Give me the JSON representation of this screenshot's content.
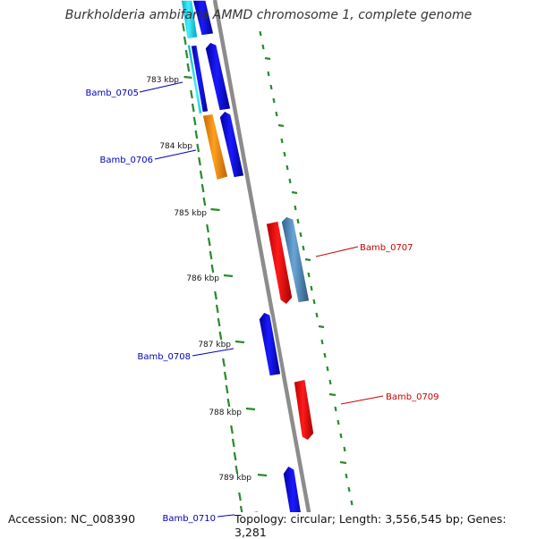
{
  "title": "Burkholderia ambifaria AMMD chromosome 1, complete genome",
  "accession_label": "Accession: NC_008390",
  "topology_label": "Topology: circular; Length: 3,556,545 bp; Genes: 3,281",
  "colors": {
    "forward_gene": "#0000dd",
    "reverse_gene": "#dd0000",
    "cyan_gene": "#00c8dc",
    "orange_gene": "#f08c00",
    "steelblue_gene": "#4682b4",
    "backbone": "#888888",
    "tick": "#2a8a2a",
    "forward_label": "#0000bb",
    "reverse_label": "#cc0000"
  },
  "kbp_labels": [
    "783 kbp",
    "784 kbp",
    "785 kbp",
    "786 kbp",
    "787 kbp",
    "788 kbp",
    "789 kbp"
  ],
  "gene_labels": {
    "left": [
      "Bamb_0705",
      "Bamb_0706",
      "Bamb_0708",
      "Bamb_0710"
    ],
    "right": [
      "Bamb_0707",
      "Bamb_0709"
    ]
  }
}
